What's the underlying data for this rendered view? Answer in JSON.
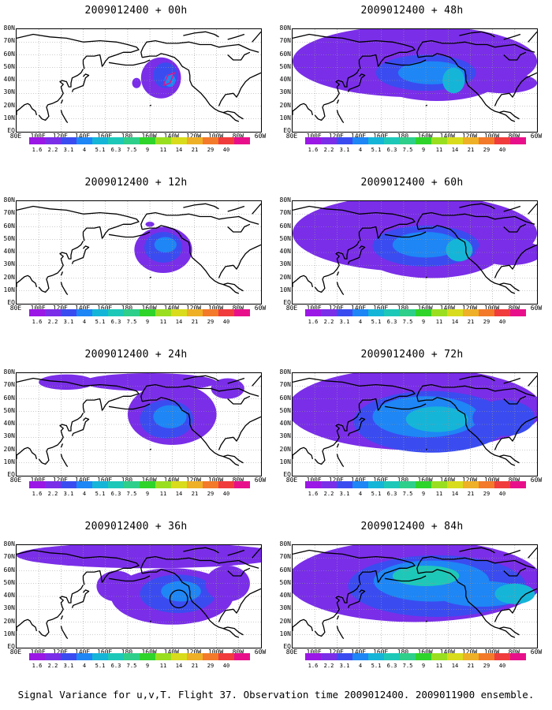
{
  "caption": "Signal Variance for u,v,T. Flight 37. Observation time 2009012400. 2009011900 ensemble.",
  "colors": {
    "land_contour": "#000000",
    "grid": "#9a9a9a",
    "flight_track": "#e8108a",
    "target_circle": "#000000"
  },
  "chart_data": {
    "type": "heatmap",
    "panels": [
      {
        "id": "p00",
        "title": "2009012400 + 00h",
        "lead_hours": 0
      },
      {
        "id": "p12",
        "title": "2009012400 + 12h",
        "lead_hours": 12
      },
      {
        "id": "p24",
        "title": "2009012400 + 24h",
        "lead_hours": 24
      },
      {
        "id": "p36",
        "title": "2009012400 + 36h",
        "lead_hours": 36
      },
      {
        "id": "p48",
        "title": "2009012400 + 48h",
        "lead_hours": 48
      },
      {
        "id": "p60",
        "title": "2009012400 + 60h",
        "lead_hours": 60
      },
      {
        "id": "p72",
        "title": "2009012400 + 72h",
        "lead_hours": 72
      },
      {
        "id": "p84",
        "title": "2009012400 + 84h",
        "lead_hours": 84
      }
    ],
    "lon_ticks": [
      "80E",
      "100E",
      "120E",
      "140E",
      "160E",
      "180",
      "160W",
      "140W",
      "120W",
      "100W",
      "80W",
      "60W"
    ],
    "lat_ticks": [
      "EQ",
      "10N",
      "20N",
      "30N",
      "40N",
      "50N",
      "60N",
      "70N",
      "80N"
    ],
    "lon_range_deg_east": [
      80,
      300
    ],
    "lat_range": [
      0,
      80
    ],
    "legend": {
      "levels": [
        "1.6",
        "2.2",
        "3.1",
        "4",
        "5.1",
        "6.3",
        "7.5",
        "9",
        "11",
        "14",
        "21",
        "29",
        "40"
      ],
      "colors": [
        "#9a17e6",
        "#7a2ee8",
        "#3a4cf0",
        "#1e86f5",
        "#15b5d8",
        "#1ec8b8",
        "#2ecf8a",
        "#2ed42a",
        "#9ade20",
        "#d8dc1c",
        "#eeb026",
        "#f37a2a",
        "#f03c3c",
        "#e8108a"
      ]
    },
    "blobs": {
      "p00": [
        {
          "lon": 210,
          "lat": 42,
          "rx": 18,
          "ry": 16,
          "level": 1
        },
        {
          "lon": 214,
          "lat": 44,
          "rx": 11,
          "ry": 10,
          "level": 2
        },
        {
          "lon": 218,
          "lat": 40,
          "rx": 5,
          "ry": 5,
          "level": 3
        },
        {
          "lon": 188,
          "lat": 38,
          "rx": 4,
          "ry": 4,
          "level": 1
        }
      ],
      "p12": [
        {
          "lon": 212,
          "lat": 42,
          "rx": 26,
          "ry": 18,
          "level": 1
        },
        {
          "lon": 212,
          "lat": 44,
          "rx": 17,
          "ry": 12,
          "level": 2
        },
        {
          "lon": 214,
          "lat": 46,
          "rx": 10,
          "ry": 6,
          "level": 3
        },
        {
          "lon": 200,
          "lat": 62,
          "rx": 4,
          "ry": 2,
          "level": 1
        }
      ],
      "p24": [
        {
          "lon": 220,
          "lat": 48,
          "rx": 40,
          "ry": 24,
          "level": 1
        },
        {
          "lon": 215,
          "lat": 44,
          "rx": 24,
          "ry": 15,
          "level": 2
        },
        {
          "lon": 218,
          "lat": 46,
          "rx": 15,
          "ry": 9,
          "level": 3
        },
        {
          "lon": 200,
          "lat": 73,
          "rx": 60,
          "ry": 7,
          "level": 1
        },
        {
          "lon": 125,
          "lat": 73,
          "rx": 25,
          "ry": 6,
          "level": 1
        },
        {
          "lon": 270,
          "lat": 68,
          "rx": 15,
          "ry": 8,
          "level": 1
        }
      ],
      "p36": [
        {
          "lon": 200,
          "lat": 72,
          "rx": 120,
          "ry": 10,
          "level": 1
        },
        {
          "lon": 220,
          "lat": 40,
          "rx": 55,
          "ry": 22,
          "level": 1
        },
        {
          "lon": 225,
          "lat": 42,
          "rx": 34,
          "ry": 15,
          "level": 2
        },
        {
          "lon": 228,
          "lat": 44,
          "rx": 18,
          "ry": 8,
          "level": 3
        },
        {
          "lon": 170,
          "lat": 48,
          "rx": 18,
          "ry": 12,
          "level": 1
        },
        {
          "lon": 270,
          "lat": 50,
          "rx": 20,
          "ry": 14,
          "level": 1
        }
      ],
      "p48": [
        {
          "lon": 190,
          "lat": 55,
          "rx": 110,
          "ry": 28,
          "level": 1
        },
        {
          "lon": 210,
          "lat": 44,
          "rx": 60,
          "ry": 20,
          "level": 1
        },
        {
          "lon": 200,
          "lat": 46,
          "rx": 45,
          "ry": 14,
          "level": 2
        },
        {
          "lon": 205,
          "lat": 46,
          "rx": 30,
          "ry": 9,
          "level": 3
        },
        {
          "lon": 225,
          "lat": 40,
          "rx": 10,
          "ry": 10,
          "level": 4
        },
        {
          "lon": 270,
          "lat": 38,
          "rx": 30,
          "ry": 8,
          "level": 1
        }
      ],
      "p60": [
        {
          "lon": 190,
          "lat": 55,
          "rx": 110,
          "ry": 30,
          "level": 1
        },
        {
          "lon": 205,
          "lat": 42,
          "rx": 65,
          "ry": 22,
          "level": 1
        },
        {
          "lon": 200,
          "lat": 45,
          "rx": 48,
          "ry": 16,
          "level": 2
        },
        {
          "lon": 200,
          "lat": 46,
          "rx": 30,
          "ry": 10,
          "level": 3
        },
        {
          "lon": 230,
          "lat": 42,
          "rx": 12,
          "ry": 9,
          "level": 4
        },
        {
          "lon": 275,
          "lat": 40,
          "rx": 30,
          "ry": 10,
          "level": 1
        }
      ],
      "p72": [
        {
          "lon": 190,
          "lat": 52,
          "rx": 115,
          "ry": 32,
          "level": 1
        },
        {
          "lon": 205,
          "lat": 42,
          "rx": 70,
          "ry": 24,
          "level": 2
        },
        {
          "lon": 200,
          "lat": 46,
          "rx": 48,
          "ry": 16,
          "level": 3
        },
        {
          "lon": 210,
          "lat": 44,
          "rx": 28,
          "ry": 10,
          "level": 4
        },
        {
          "lon": 270,
          "lat": 45,
          "rx": 28,
          "ry": 14,
          "level": 2
        }
      ],
      "p84": [
        {
          "lon": 190,
          "lat": 52,
          "rx": 115,
          "ry": 32,
          "level": 1
        },
        {
          "lon": 210,
          "lat": 48,
          "rx": 80,
          "ry": 24,
          "level": 2
        },
        {
          "lon": 205,
          "lat": 52,
          "rx": 52,
          "ry": 16,
          "level": 3
        },
        {
          "lon": 200,
          "lat": 56,
          "rx": 30,
          "ry": 8,
          "level": 5
        },
        {
          "lon": 250,
          "lat": 42,
          "rx": 40,
          "ry": 10,
          "level": 3
        },
        {
          "lon": 280,
          "lat": 42,
          "rx": 18,
          "ry": 8,
          "level": 4
        }
      ]
    },
    "flight_track": {
      "panel": "p00",
      "points": [
        [
          212,
          36
        ],
        [
          216,
          44
        ],
        [
          222,
          46
        ],
        [
          218,
          38
        ],
        [
          212,
          36
        ]
      ]
    },
    "target_circle": {
      "panel": "p36",
      "lon": 226,
      "lat": 38,
      "radius_deg": 8
    }
  }
}
